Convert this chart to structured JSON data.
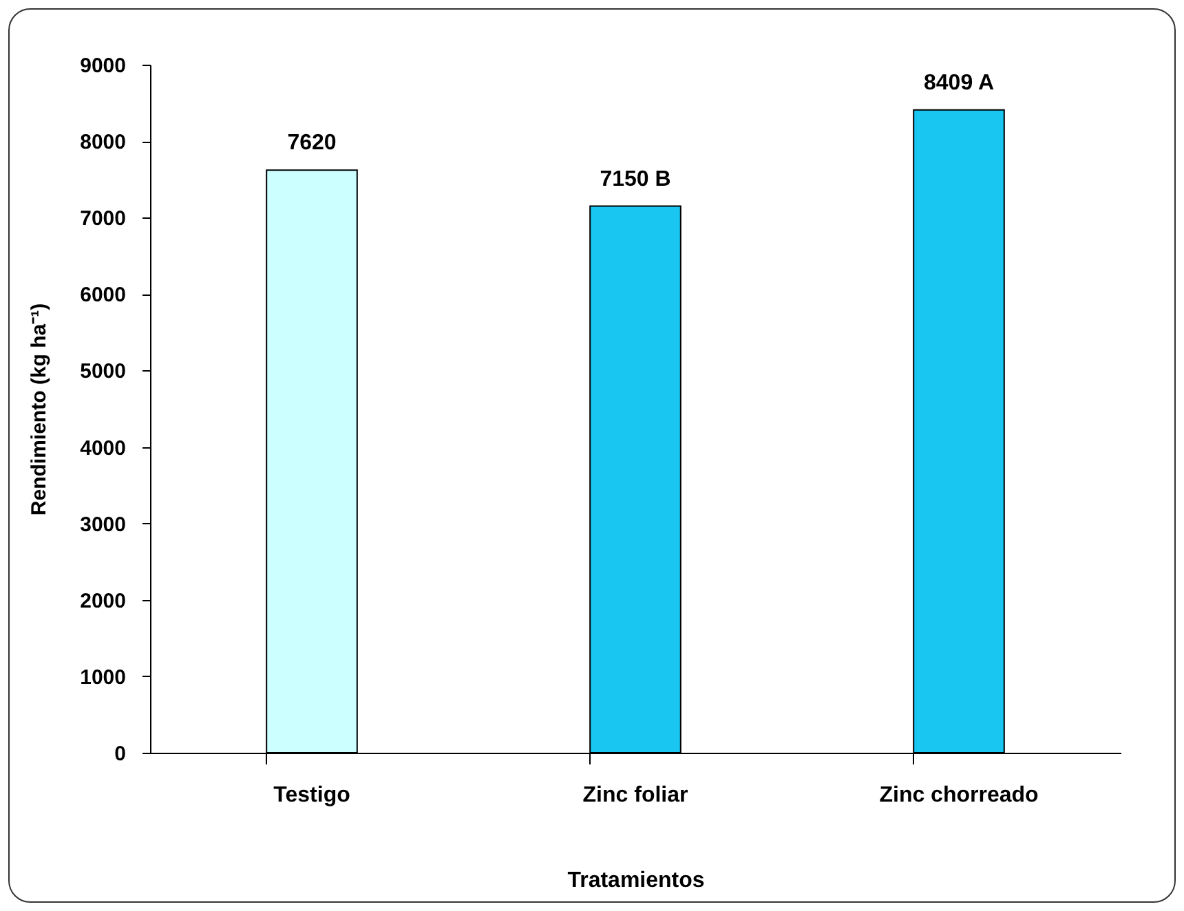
{
  "chart_data": {
    "type": "bar",
    "xlabel": "Tratamientos",
    "ylabel": "Rendimiento (kg ha⁻¹)",
    "categories": [
      "Testigo",
      "Zinc foliar",
      "Zinc chorreado"
    ],
    "values": [
      7620,
      7150,
      8409
    ],
    "colors": [
      "#ccffff",
      "#19c6f2",
      "#19c6f2"
    ],
    "value_labels": [
      "7620",
      "7150 B",
      "8409 A"
    ],
    "ylim": [
      0,
      9000
    ],
    "yticks": [
      0,
      1000,
      2000,
      3000,
      4000,
      5000,
      6000,
      7000,
      8000,
      9000
    ],
    "grid": false
  }
}
